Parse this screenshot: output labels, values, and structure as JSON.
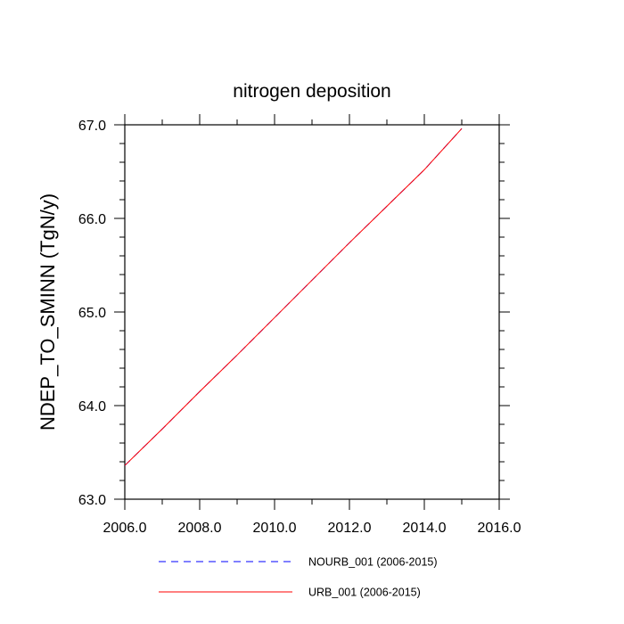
{
  "chart_data": {
    "type": "line",
    "title": "nitrogen deposition",
    "xlabel": "",
    "ylabel": "NDEP_TO_SMINN  (TgN/y)",
    "xlim": [
      2006.0,
      2016.0
    ],
    "ylim": [
      63.0,
      67.0
    ],
    "xticks": [
      2006.0,
      2008.0,
      2010.0,
      2012.0,
      2014.0,
      2016.0
    ],
    "xtick_labels": [
      "2006.0",
      "2008.0",
      "2010.0",
      "2012.0",
      "2014.0",
      "2016.0"
    ],
    "yticks": [
      63.0,
      64.0,
      65.0,
      66.0,
      67.0
    ],
    "ytick_labels": [
      "63.0",
      "64.0",
      "65.0",
      "66.0",
      "67.0"
    ],
    "grid": false,
    "legend_position": "bottom",
    "x": [
      2006.0,
      2007.0,
      2008.0,
      2009.0,
      2010.0,
      2011.0,
      2012.0,
      2013.0,
      2014.0,
      2015.0
    ],
    "series": [
      {
        "name": "NOURB_001 (2006-2015)",
        "color": "#0000ff",
        "style": "dashed",
        "values": [
          63.36,
          63.75,
          64.15,
          64.54,
          64.94,
          65.34,
          65.74,
          66.13,
          66.52,
          66.96
        ]
      },
      {
        "name": "URB_001 (2006-2015)",
        "color": "#ff0000",
        "style": "solid",
        "values": [
          63.36,
          63.75,
          64.15,
          64.54,
          64.94,
          65.34,
          65.74,
          66.13,
          66.52,
          66.96
        ]
      }
    ]
  }
}
